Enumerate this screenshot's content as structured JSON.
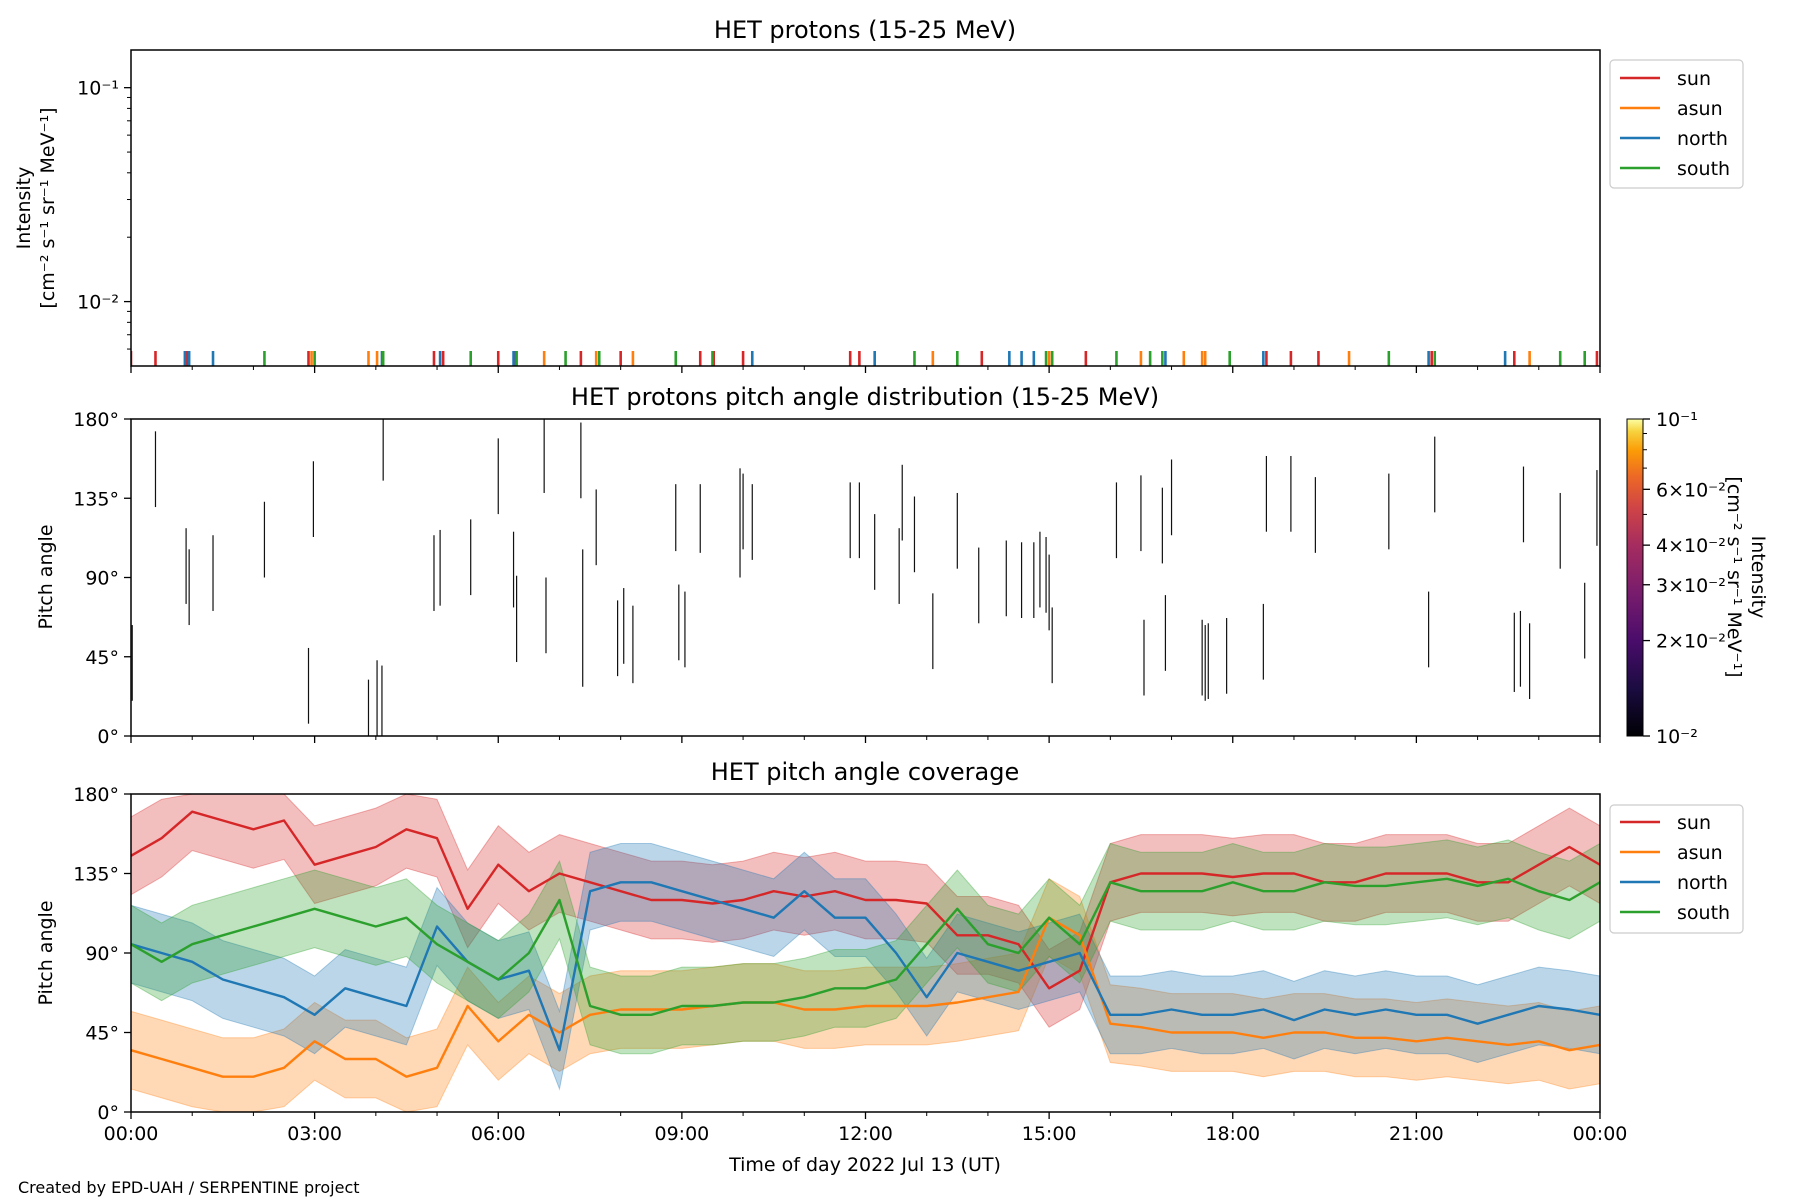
{
  "figure": {
    "credit": "Created by EPD-UAH / SERPENTINE project",
    "xlabel": "Time of day 2022 Jul 13 (UT)",
    "x_tick_labels": [
      "00:00",
      "03:00",
      "06:00",
      "09:00",
      "12:00",
      "15:00",
      "18:00",
      "21:00",
      "00:00"
    ]
  },
  "colors": {
    "sun": "#d62728",
    "asun": "#ff7f0e",
    "north": "#1f77b4",
    "south": "#2ca02c"
  },
  "chart_data": [
    {
      "type": "line",
      "title": "HET protons (15-25 MeV)",
      "ylabel": "Intensity [cm⁻² s⁻¹ sr⁻¹ MeV⁻¹]",
      "ylabel_lines": [
        "Intensity",
        "[cm⁻² s⁻¹ sr⁻¹ MeV⁻¹]"
      ],
      "yscale": "log",
      "ylim": [
        0.005,
        0.15
      ],
      "y_tick_labels": [
        "10⁻¹",
        "10⁻²"
      ],
      "y_tick_values": [
        0.1,
        0.01
      ],
      "xlim_hours": [
        0,
        24
      ],
      "legend_placement": "upper-right-outside",
      "series": [
        {
          "name": "sun",
          "color": "#d62728",
          "spike_hours": [
            0.0,
            0.4,
            0.92,
            2.9,
            4.95,
            5.1,
            6.0,
            6.28,
            7.35,
            8.0,
            9.3,
            9.52,
            10.0,
            11.75,
            11.9,
            13.9,
            15.6,
            18.55,
            18.95,
            19.4,
            21.25,
            22.6,
            23.95
          ]
        },
        {
          "name": "asun",
          "color": "#ff7f0e",
          "spike_hours": [
            2.95,
            3.88,
            4.02,
            6.75,
            7.6,
            8.2,
            13.1,
            15.0,
            15.05,
            16.5,
            17.2,
            17.5,
            17.55,
            19.9,
            22.85
          ]
        },
        {
          "name": "north",
          "color": "#1f77b4",
          "spike_hours": [
            0.88,
            0.95,
            1.34,
            4.1,
            5.05,
            6.25,
            10.15,
            12.15,
            14.35,
            14.55,
            14.75,
            16.9,
            18.5,
            21.2,
            22.45
          ]
        },
        {
          "name": "south",
          "color": "#2ca02c",
          "spike_hours": [
            2.18,
            3.0,
            4.12,
            5.55,
            6.3,
            7.1,
            7.65,
            8.9,
            9.5,
            12.8,
            13.5,
            14.95,
            15.05,
            16.1,
            16.65,
            16.85,
            17.95,
            20.55,
            21.3,
            23.35,
            23.75
          ]
        }
      ]
    },
    {
      "type": "heatmap",
      "title": "HET protons pitch angle distribution (15-25 MeV)",
      "ylabel": "Pitch angle",
      "ylim": [
        0,
        180
      ],
      "y_tick_labels": [
        "0°",
        "45°",
        "90°",
        "135°",
        "180°"
      ],
      "y_tick_values": [
        0,
        45,
        90,
        135,
        180
      ],
      "colorbar": {
        "label": "Intensity [cm⁻² s⁻¹ sr⁻¹ MeV⁻¹]",
        "label_lines": [
          "Intensity",
          "[cm⁻² s⁻¹ sr⁻¹ MeV⁻¹]"
        ],
        "scale": "log",
        "range": [
          0.01,
          0.1
        ],
        "tick_labels": [
          "10⁻¹",
          "6×10⁻²",
          "4×10⁻²",
          "3×10⁻²",
          "2×10⁻²",
          "10⁻²"
        ],
        "tick_values": [
          0.1,
          0.06,
          0.04,
          0.03,
          0.02,
          0.01
        ]
      },
      "segments": [
        {
          "t": 0.02,
          "y0": 20,
          "y1": 63
        },
        {
          "t": 0.4,
          "y0": 130,
          "y1": 173
        },
        {
          "t": 0.9,
          "y0": 75,
          "y1": 118
        },
        {
          "t": 0.95,
          "y0": 63,
          "y1": 106
        },
        {
          "t": 1.34,
          "y0": 71,
          "y1": 114
        },
        {
          "t": 2.18,
          "y0": 90,
          "y1": 133
        },
        {
          "t": 2.9,
          "y0": 7,
          "y1": 50
        },
        {
          "t": 2.98,
          "y0": 113,
          "y1": 156
        },
        {
          "t": 3.88,
          "y0": 0,
          "y1": 32
        },
        {
          "t": 4.02,
          "y0": 0,
          "y1": 43
        },
        {
          "t": 4.1,
          "y0": 0,
          "y1": 40
        },
        {
          "t": 4.12,
          "y0": 145,
          "y1": 180
        },
        {
          "t": 4.95,
          "y0": 71,
          "y1": 114
        },
        {
          "t": 5.05,
          "y0": 74,
          "y1": 117
        },
        {
          "t": 5.55,
          "y0": 80,
          "y1": 123
        },
        {
          "t": 6.0,
          "y0": 126,
          "y1": 169
        },
        {
          "t": 6.25,
          "y0": 73,
          "y1": 116
        },
        {
          "t": 6.3,
          "y0": 42,
          "y1": 91
        },
        {
          "t": 6.75,
          "y0": 138,
          "y1": 180
        },
        {
          "t": 6.78,
          "y0": 47,
          "y1": 90
        },
        {
          "t": 7.35,
          "y0": 135,
          "y1": 178
        },
        {
          "t": 7.38,
          "y0": 28,
          "y1": 106
        },
        {
          "t": 7.6,
          "y0": 97,
          "y1": 140
        },
        {
          "t": 7.95,
          "y0": 34,
          "y1": 77
        },
        {
          "t": 8.05,
          "y0": 41,
          "y1": 84
        },
        {
          "t": 8.2,
          "y0": 30,
          "y1": 74
        },
        {
          "t": 8.9,
          "y0": 105,
          "y1": 143
        },
        {
          "t": 8.95,
          "y0": 43,
          "y1": 86
        },
        {
          "t": 9.05,
          "y0": 39,
          "y1": 82
        },
        {
          "t": 9.3,
          "y0": 104,
          "y1": 143
        },
        {
          "t": 9.95,
          "y0": 90,
          "y1": 152
        },
        {
          "t": 10.0,
          "y0": 106,
          "y1": 149
        },
        {
          "t": 10.15,
          "y0": 100,
          "y1": 143
        },
        {
          "t": 11.75,
          "y0": 101,
          "y1": 144
        },
        {
          "t": 11.9,
          "y0": 101,
          "y1": 144
        },
        {
          "t": 12.15,
          "y0": 83,
          "y1": 126
        },
        {
          "t": 12.55,
          "y0": 75,
          "y1": 118
        },
        {
          "t": 12.6,
          "y0": 111,
          "y1": 154
        },
        {
          "t": 12.8,
          "y0": 93,
          "y1": 136
        },
        {
          "t": 13.1,
          "y0": 38,
          "y1": 81
        },
        {
          "t": 13.5,
          "y0": 95,
          "y1": 138
        },
        {
          "t": 13.85,
          "y0": 64,
          "y1": 107
        },
        {
          "t": 14.3,
          "y0": 68,
          "y1": 111
        },
        {
          "t": 14.55,
          "y0": 67,
          "y1": 110
        },
        {
          "t": 14.75,
          "y0": 67,
          "y1": 110
        },
        {
          "t": 14.85,
          "y0": 73,
          "y1": 116
        },
        {
          "t": 14.95,
          "y0": 70,
          "y1": 113
        },
        {
          "t": 15.0,
          "y0": 60,
          "y1": 103
        },
        {
          "t": 15.05,
          "y0": 30,
          "y1": 73
        },
        {
          "t": 16.1,
          "y0": 101,
          "y1": 144
        },
        {
          "t": 16.5,
          "y0": 105,
          "y1": 148
        },
        {
          "t": 16.55,
          "y0": 23,
          "y1": 66
        },
        {
          "t": 16.85,
          "y0": 98,
          "y1": 141
        },
        {
          "t": 16.9,
          "y0": 37,
          "y1": 80
        },
        {
          "t": 17.0,
          "y0": 114,
          "y1": 157
        },
        {
          "t": 17.5,
          "y0": 23,
          "y1": 66
        },
        {
          "t": 17.55,
          "y0": 20,
          "y1": 63
        },
        {
          "t": 17.6,
          "y0": 21,
          "y1": 64
        },
        {
          "t": 17.9,
          "y0": 24,
          "y1": 67
        },
        {
          "t": 18.5,
          "y0": 32,
          "y1": 75
        },
        {
          "t": 18.55,
          "y0": 116,
          "y1": 159
        },
        {
          "t": 18.95,
          "y0": 116,
          "y1": 159
        },
        {
          "t": 19.35,
          "y0": 104,
          "y1": 147
        },
        {
          "t": 20.55,
          "y0": 106,
          "y1": 149
        },
        {
          "t": 21.2,
          "y0": 39,
          "y1": 82
        },
        {
          "t": 21.3,
          "y0": 127,
          "y1": 170
        },
        {
          "t": 22.6,
          "y0": 25,
          "y1": 70
        },
        {
          "t": 22.7,
          "y0": 28,
          "y1": 71
        },
        {
          "t": 22.85,
          "y0": 21,
          "y1": 64
        },
        {
          "t": 22.75,
          "y0": 110,
          "y1": 153
        },
        {
          "t": 23.35,
          "y0": 95,
          "y1": 138
        },
        {
          "t": 23.75,
          "y0": 44,
          "y1": 87
        },
        {
          "t": 23.95,
          "y0": 108,
          "y1": 151
        }
      ]
    },
    {
      "type": "area",
      "title": "HET pitch angle coverage",
      "ylabel": "Pitch angle",
      "ylim": [
        0,
        180
      ],
      "y_tick_labels": [
        "0°",
        "45°",
        "90°",
        "135°",
        "180°"
      ],
      "y_tick_values": [
        0,
        45,
        90,
        135,
        180
      ],
      "band_halfwidth": 22,
      "x_hours": [
        0,
        0.5,
        1,
        1.5,
        2,
        2.5,
        3,
        3.5,
        4,
        4.5,
        5,
        5.5,
        6,
        6.5,
        7,
        7.5,
        8,
        8.5,
        9,
        9.5,
        10,
        10.5,
        11,
        11.5,
        12,
        12.5,
        13,
        13.5,
        14,
        14.5,
        15,
        15.5,
        16,
        16.5,
        17,
        17.5,
        18,
        18.5,
        19,
        19.5,
        20,
        20.5,
        21,
        21.5,
        22,
        22.5,
        23,
        23.5,
        24
      ],
      "legend_placement": "upper-right-outside",
      "series": [
        {
          "name": "sun",
          "color": "#d62728",
          "values": [
            145,
            155,
            170,
            165,
            160,
            165,
            140,
            145,
            150,
            160,
            155,
            115,
            140,
            125,
            135,
            130,
            125,
            120,
            120,
            118,
            120,
            125,
            122,
            125,
            120,
            120,
            118,
            100,
            100,
            95,
            70,
            80,
            130,
            135,
            135,
            135,
            133,
            135,
            135,
            130,
            130,
            135,
            135,
            135,
            130,
            130,
            140,
            150,
            140
          ]
        },
        {
          "name": "asun",
          "color": "#ff7f0e",
          "values": [
            35,
            30,
            25,
            20,
            20,
            25,
            40,
            30,
            30,
            20,
            25,
            60,
            40,
            55,
            45,
            55,
            58,
            58,
            58,
            60,
            62,
            62,
            58,
            58,
            60,
            60,
            60,
            62,
            65,
            68,
            110,
            100,
            50,
            48,
            45,
            45,
            45,
            42,
            45,
            45,
            42,
            42,
            40,
            42,
            40,
            38,
            40,
            35,
            38
          ]
        },
        {
          "name": "north",
          "color": "#1f77b4",
          "values": [
            95,
            90,
            85,
            75,
            70,
            65,
            55,
            70,
            65,
            60,
            105,
            85,
            75,
            80,
            35,
            125,
            130,
            130,
            125,
            120,
            115,
            110,
            125,
            110,
            110,
            90,
            65,
            90,
            85,
            80,
            85,
            90,
            55,
            55,
            58,
            55,
            55,
            58,
            52,
            58,
            55,
            58,
            55,
            55,
            50,
            55,
            60,
            58,
            55
          ]
        },
        {
          "name": "south",
          "color": "#2ca02c",
          "values": [
            95,
            85,
            95,
            100,
            105,
            110,
            115,
            110,
            105,
            110,
            95,
            85,
            75,
            90,
            120,
            60,
            55,
            55,
            60,
            60,
            62,
            62,
            65,
            70,
            70,
            75,
            95,
            115,
            95,
            90,
            110,
            95,
            130,
            125,
            125,
            125,
            130,
            125,
            125,
            130,
            128,
            128,
            130,
            132,
            128,
            132,
            125,
            120,
            130
          ]
        }
      ]
    }
  ]
}
